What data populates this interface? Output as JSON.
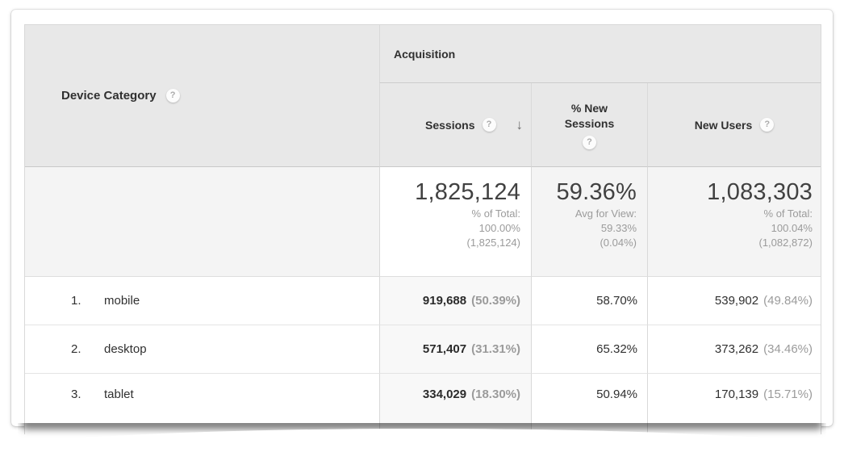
{
  "table": {
    "dimension_header": {
      "label": "Device Category"
    },
    "group_header": {
      "label": "Acquisition"
    },
    "columns": {
      "sessions": {
        "label": "Sessions",
        "sorted": "desc"
      },
      "pct_new_sessions": {
        "label_line1": "% New",
        "label_line2": "Sessions"
      },
      "new_users": {
        "label": "New Users"
      }
    },
    "summary": {
      "sessions": {
        "value": "1,825,124",
        "lines": [
          "% of Total:",
          "100.00%",
          "(1,825,124)"
        ]
      },
      "pct_new_sessions": {
        "value": "59.36%",
        "lines": [
          "Avg for View:",
          "59.33%",
          "(0.04%)"
        ]
      },
      "new_users": {
        "value": "1,083,303",
        "lines": [
          "% of Total:",
          "100.04%",
          "(1,082,872)"
        ]
      }
    },
    "rows": [
      {
        "rank": "1.",
        "device": "mobile",
        "sessions": "919,688",
        "sessions_pct": "(50.39%)",
        "pct_new_sessions": "58.70%",
        "new_users": "539,902",
        "new_users_pct": "(49.84%)"
      },
      {
        "rank": "2.",
        "device": "desktop",
        "sessions": "571,407",
        "sessions_pct": "(31.31%)",
        "pct_new_sessions": "65.32%",
        "new_users": "373,262",
        "new_users_pct": "(34.46%)"
      },
      {
        "rank": "3.",
        "device": "tablet",
        "sessions": "334,029",
        "sessions_pct": "(18.30%)",
        "pct_new_sessions": "50.94%",
        "new_users": "170,139",
        "new_users_pct": "(15.71%)"
      }
    ]
  },
  "icons": {
    "help_glyph": "?",
    "sort_desc_glyph": "↓"
  },
  "colors": {
    "header_bg": "#e8e8e8",
    "sorted_column_bg": "#f8f8f8",
    "summary_bg": "#f4f4f4",
    "border": "#d9d9d9",
    "text_primary": "#333333",
    "text_secondary": "#9b9b9b",
    "big_number": "#414141"
  }
}
